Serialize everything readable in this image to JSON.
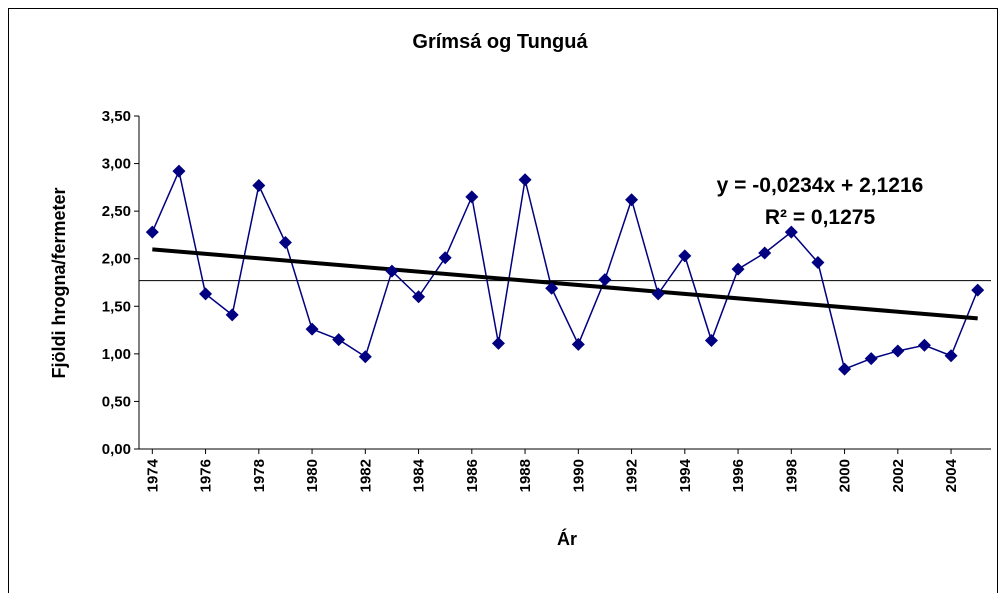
{
  "chart_data": {
    "type": "line",
    "title": "Grímsá og Tunguá",
    "x_label": "Ár",
    "y_label": "Fjöldi hrogna/fermeter",
    "x": [
      1974,
      1975,
      1976,
      1977,
      1978,
      1979,
      1980,
      1981,
      1982,
      1983,
      1984,
      1985,
      1986,
      1987,
      1988,
      1989,
      1990,
      1991,
      1992,
      1993,
      1994,
      1995,
      1996,
      1997,
      1998,
      1999,
      2000,
      2001,
      2002,
      2003,
      2004,
      2005
    ],
    "series": [
      {
        "name": "Fjöldi hrogna/fermeter",
        "color": "#000080",
        "values": [
          2.28,
          2.92,
          1.63,
          1.41,
          2.77,
          2.17,
          1.26,
          1.15,
          0.97,
          1.87,
          1.6,
          2.01,
          2.65,
          1.11,
          2.83,
          1.69,
          1.1,
          1.78,
          2.62,
          1.63,
          2.03,
          1.14,
          1.89,
          2.06,
          2.28,
          1.96,
          0.84,
          0.95,
          1.03,
          1.09,
          0.98,
          1.67
        ]
      }
    ],
    "xlim": [
      1973.5,
      2005.5
    ],
    "xticks": [
      1974,
      1976,
      1978,
      1980,
      1982,
      1984,
      1986,
      1988,
      1990,
      1992,
      1994,
      1996,
      1998,
      2000,
      2002,
      2004
    ],
    "ylim": [
      0,
      3.5
    ],
    "yticks": [
      {
        "value": 0,
        "label": "0,00"
      },
      {
        "value": 0.5,
        "label": "0,50"
      },
      {
        "value": 1,
        "label": "1,00"
      },
      {
        "value": 1.5,
        "label": "1,50"
      },
      {
        "value": 2,
        "label": "2,00"
      },
      {
        "value": 2.5,
        "label": "2,50"
      },
      {
        "value": 3,
        "label": "3,00"
      },
      {
        "value": 3.5,
        "label": "3,50"
      }
    ],
    "trendline": {
      "slope": -0.0234,
      "intercept": 2.1216,
      "color": "#000000",
      "equation": "y = -0,0234x + 2,1216",
      "r_squared": "R² = 0,1275"
    },
    "reference_line": 1.77
  }
}
